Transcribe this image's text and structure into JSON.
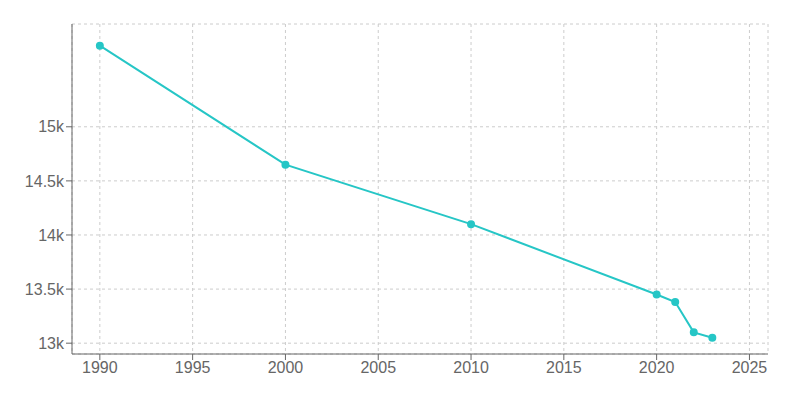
{
  "chart_data": {
    "type": "line",
    "x": [
      1990,
      2000,
      2010,
      2020,
      2021,
      2022,
      2023
    ],
    "values": [
      15750,
      14650,
      14100,
      13450,
      13380,
      13100,
      13050
    ],
    "color": "#26C6C6",
    "marker": "circle",
    "xlim": [
      1988.5,
      2026
    ],
    "xticks": [
      1990,
      1995,
      2000,
      2005,
      2010,
      2015,
      2020,
      2025
    ],
    "ylim": [
      12900,
      15950
    ],
    "yticks": [
      {
        "value": 13000,
        "label": "13k"
      },
      {
        "value": 13500,
        "label": "13.5k"
      },
      {
        "value": 14000,
        "label": "14k"
      },
      {
        "value": 14500,
        "label": "14.5k"
      },
      {
        "value": 15000,
        "label": "15k"
      }
    ],
    "grid": true
  }
}
